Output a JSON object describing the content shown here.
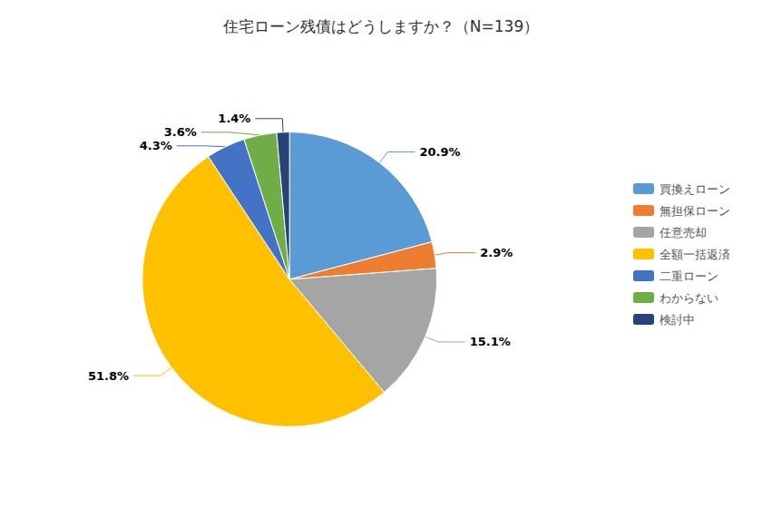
{
  "chart_data": {
    "type": "pie",
    "title": "住宅ローン残債はどうしますか？（N=139）",
    "categories": [
      "買換えローン",
      "無担保ローン",
      "任意売却",
      "全額一括返済",
      "二重ローン",
      "わからない",
      "検討中"
    ],
    "values": [
      20.9,
      2.9,
      15.1,
      51.8,
      4.3,
      3.6,
      1.4
    ],
    "value_labels": [
      "20.9%",
      "2.9%",
      "15.1%",
      "51.8%",
      "4.3%",
      "3.6%",
      "1.4%"
    ],
    "colors": [
      "#5B9BD5",
      "#ED7D31",
      "#A5A5A5",
      "#FFC000",
      "#4472C4",
      "#70AD47",
      "#264478"
    ],
    "data_labels": true,
    "legend": "right"
  }
}
